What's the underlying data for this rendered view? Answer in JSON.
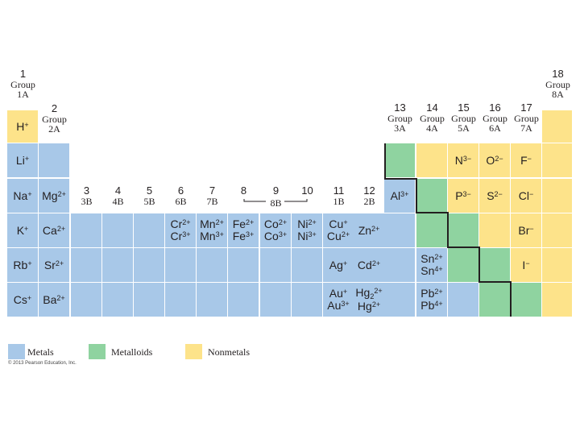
{
  "colors": {
    "metal": "#a8c8e8",
    "metalloid": "#8fd3a0",
    "nonmetal": "#fde38a",
    "border": "#231f20"
  },
  "group_headers": [
    {
      "id": "g1",
      "number": "1",
      "group": "Group",
      "label": "1A"
    },
    {
      "id": "g2",
      "number": "2",
      "group": "Group",
      "label": "2A"
    },
    {
      "id": "g3",
      "number": "3",
      "group": "",
      "label": "3B"
    },
    {
      "id": "g4",
      "number": "4",
      "group": "",
      "label": "4B"
    },
    {
      "id": "g5",
      "number": "5",
      "group": "",
      "label": "5B"
    },
    {
      "id": "g6",
      "number": "6",
      "group": "",
      "label": "6B"
    },
    {
      "id": "g7",
      "number": "7",
      "group": "",
      "label": "7B"
    },
    {
      "id": "g8",
      "number": "8",
      "group": "",
      "label": ""
    },
    {
      "id": "g9",
      "number": "9",
      "group": "",
      "label": "8B"
    },
    {
      "id": "g10",
      "number": "10",
      "group": "",
      "label": ""
    },
    {
      "id": "g11",
      "number": "11",
      "group": "",
      "label": "1B"
    },
    {
      "id": "g12",
      "number": "12",
      "group": "",
      "label": "2B"
    },
    {
      "id": "g13",
      "number": "13",
      "group": "Group",
      "label": "3A"
    },
    {
      "id": "g14",
      "number": "14",
      "group": "Group",
      "label": "4A"
    },
    {
      "id": "g15",
      "number": "15",
      "group": "Group",
      "label": "5A"
    },
    {
      "id": "g16",
      "number": "16",
      "group": "Group",
      "label": "6A"
    },
    {
      "id": "g17",
      "number": "17",
      "group": "Group",
      "label": "7A"
    },
    {
      "id": "g18",
      "number": "18",
      "group": "Group",
      "label": "8A"
    }
  ],
  "cells": [
    {
      "row": 1,
      "col": 1,
      "type": "nonmetal",
      "ions": [
        [
          "H",
          "+"
        ]
      ]
    },
    {
      "row": 1,
      "col": 18,
      "type": "nonmetal",
      "ions": []
    },
    {
      "row": 2,
      "col": 1,
      "type": "metal",
      "ions": [
        [
          "Li",
          "+"
        ]
      ]
    },
    {
      "row": 2,
      "col": 2,
      "type": "metal",
      "ions": []
    },
    {
      "row": 2,
      "col": 13,
      "type": "metalloid",
      "ions": []
    },
    {
      "row": 2,
      "col": 14,
      "type": "nonmetal",
      "ions": []
    },
    {
      "row": 2,
      "col": 15,
      "type": "nonmetal",
      "ions": [
        [
          "N",
          "3−"
        ]
      ]
    },
    {
      "row": 2,
      "col": 16,
      "type": "nonmetal",
      "ions": [
        [
          "O",
          "2−"
        ]
      ]
    },
    {
      "row": 2,
      "col": 17,
      "type": "nonmetal",
      "ions": [
        [
          "F",
          "−"
        ]
      ]
    },
    {
      "row": 2,
      "col": 18,
      "type": "nonmetal",
      "ions": []
    },
    {
      "row": 3,
      "col": 1,
      "type": "metal",
      "ions": [
        [
          "Na",
          "+"
        ]
      ]
    },
    {
      "row": 3,
      "col": 2,
      "type": "metal",
      "ions": [
        [
          "Mg",
          "2+"
        ]
      ]
    },
    {
      "row": 3,
      "col": 13,
      "type": "metal",
      "ions": [
        [
          "Al",
          "3+"
        ]
      ]
    },
    {
      "row": 3,
      "col": 14,
      "type": "metalloid",
      "ions": []
    },
    {
      "row": 3,
      "col": 15,
      "type": "nonmetal",
      "ions": [
        [
          "P",
          "3−"
        ]
      ]
    },
    {
      "row": 3,
      "col": 16,
      "type": "nonmetal",
      "ions": [
        [
          "S",
          "2−"
        ]
      ]
    },
    {
      "row": 3,
      "col": 17,
      "type": "nonmetal",
      "ions": [
        [
          "Cl",
          "−"
        ]
      ]
    },
    {
      "row": 3,
      "col": 18,
      "type": "nonmetal",
      "ions": []
    },
    {
      "row": 4,
      "col": 1,
      "type": "metal",
      "ions": [
        [
          "K",
          "+"
        ]
      ]
    },
    {
      "row": 4,
      "col": 2,
      "type": "metal",
      "ions": [
        [
          "Ca",
          "2+"
        ]
      ]
    },
    {
      "row": 4,
      "col": 3,
      "type": "metal",
      "ions": []
    },
    {
      "row": 4,
      "col": 4,
      "type": "metal",
      "ions": []
    },
    {
      "row": 4,
      "col": 5,
      "type": "metal",
      "ions": []
    },
    {
      "row": 4,
      "col": 6,
      "type": "metal",
      "ions": [
        [
          "Cr",
          "2+"
        ],
        [
          "Cr",
          "3+"
        ]
      ]
    },
    {
      "row": 4,
      "col": 7,
      "type": "metal",
      "ions": [
        [
          "Mn",
          "2+"
        ],
        [
          "Mn",
          "3+"
        ]
      ]
    },
    {
      "row": 4,
      "col": 8,
      "type": "metal",
      "ions": [
        [
          "Fe",
          "2+"
        ],
        [
          "Fe",
          "3+"
        ]
      ]
    },
    {
      "row": 4,
      "col": 9,
      "type": "metal",
      "ions": [
        [
          "Co",
          "2+"
        ],
        [
          "Co",
          "3+"
        ]
      ]
    },
    {
      "row": 4,
      "col": 10,
      "type": "metal",
      "ions": [
        [
          "Ni",
          "2+"
        ],
        [
          "Ni",
          "3+"
        ]
      ]
    },
    {
      "row": 4,
      "col": 11,
      "type": "metal",
      "ions": [
        [
          "Cu",
          "+"
        ],
        [
          "Cu",
          "2+"
        ]
      ]
    },
    {
      "row": 4,
      "col": 12,
      "type": "metal",
      "ions": [
        [
          "Zn",
          "2+"
        ]
      ]
    },
    {
      "row": 4,
      "col": 13,
      "type": "metal",
      "ions": []
    },
    {
      "row": 4,
      "col": 14,
      "type": "metalloid",
      "ions": []
    },
    {
      "row": 4,
      "col": 15,
      "type": "metalloid",
      "ions": []
    },
    {
      "row": 4,
      "col": 16,
      "type": "nonmetal",
      "ions": []
    },
    {
      "row": 4,
      "col": 17,
      "type": "nonmetal",
      "ions": [
        [
          "Br",
          "−"
        ]
      ]
    },
    {
      "row": 4,
      "col": 18,
      "type": "nonmetal",
      "ions": []
    },
    {
      "row": 5,
      "col": 1,
      "type": "metal",
      "ions": [
        [
          "Rb",
          "+"
        ]
      ]
    },
    {
      "row": 5,
      "col": 2,
      "type": "metal",
      "ions": [
        [
          "Sr",
          "2+"
        ]
      ]
    },
    {
      "row": 5,
      "col": 3,
      "type": "metal",
      "ions": []
    },
    {
      "row": 5,
      "col": 4,
      "type": "metal",
      "ions": []
    },
    {
      "row": 5,
      "col": 5,
      "type": "metal",
      "ions": []
    },
    {
      "row": 5,
      "col": 6,
      "type": "metal",
      "ions": []
    },
    {
      "row": 5,
      "col": 7,
      "type": "metal",
      "ions": []
    },
    {
      "row": 5,
      "col": 8,
      "type": "metal",
      "ions": []
    },
    {
      "row": 5,
      "col": 9,
      "type": "metal",
      "ions": []
    },
    {
      "row": 5,
      "col": 10,
      "type": "metal",
      "ions": []
    },
    {
      "row": 5,
      "col": 11,
      "type": "metal",
      "ions": [
        [
          "Ag",
          "+"
        ]
      ]
    },
    {
      "row": 5,
      "col": 12,
      "type": "metal",
      "ions": [
        [
          "Cd",
          "2+"
        ]
      ]
    },
    {
      "row": 5,
      "col": 13,
      "type": "metal",
      "ions": []
    },
    {
      "row": 5,
      "col": 14,
      "type": "metal",
      "ions": [
        [
          "Sn",
          "2+"
        ],
        [
          "Sn",
          "4+"
        ]
      ]
    },
    {
      "row": 5,
      "col": 15,
      "type": "metalloid",
      "ions": []
    },
    {
      "row": 5,
      "col": 16,
      "type": "metalloid",
      "ions": []
    },
    {
      "row": 5,
      "col": 17,
      "type": "nonmetal",
      "ions": [
        [
          "I",
          "−"
        ]
      ]
    },
    {
      "row": 5,
      "col": 18,
      "type": "nonmetal",
      "ions": []
    },
    {
      "row": 6,
      "col": 1,
      "type": "metal",
      "ions": [
        [
          "Cs",
          "+"
        ]
      ]
    },
    {
      "row": 6,
      "col": 2,
      "type": "metal",
      "ions": [
        [
          "Ba",
          "2+"
        ]
      ]
    },
    {
      "row": 6,
      "col": 3,
      "type": "metal",
      "ions": []
    },
    {
      "row": 6,
      "col": 4,
      "type": "metal",
      "ions": []
    },
    {
      "row": 6,
      "col": 5,
      "type": "metal",
      "ions": []
    },
    {
      "row": 6,
      "col": 6,
      "type": "metal",
      "ions": []
    },
    {
      "row": 6,
      "col": 7,
      "type": "metal",
      "ions": []
    },
    {
      "row": 6,
      "col": 8,
      "type": "metal",
      "ions": []
    },
    {
      "row": 6,
      "col": 9,
      "type": "metal",
      "ions": []
    },
    {
      "row": 6,
      "col": 10,
      "type": "metal",
      "ions": []
    },
    {
      "row": 6,
      "col": 11,
      "type": "metal",
      "ions": [
        [
          "Au",
          "+"
        ],
        [
          "Au",
          "3+"
        ]
      ]
    },
    {
      "row": 6,
      "col": 12,
      "type": "metal",
      "ions": [
        [
          "Hg",
          "2+",
          "2"
        ],
        [
          "Hg",
          "2+"
        ]
      ]
    },
    {
      "row": 6,
      "col": 13,
      "type": "metal",
      "ions": []
    },
    {
      "row": 6,
      "col": 14,
      "type": "metal",
      "ions": [
        [
          "Pb",
          "2+"
        ],
        [
          "Pb",
          "4+"
        ]
      ]
    },
    {
      "row": 6,
      "col": 15,
      "type": "metal",
      "ions": []
    },
    {
      "row": 6,
      "col": 16,
      "type": "metalloid",
      "ions": []
    },
    {
      "row": 6,
      "col": 17,
      "type": "metalloid",
      "ions": []
    },
    {
      "row": 6,
      "col": 18,
      "type": "nonmetal",
      "ions": []
    }
  ],
  "legend": [
    {
      "type": "metal",
      "label": "Metals"
    },
    {
      "type": "metalloid",
      "label": "Metalloids"
    },
    {
      "type": "nonmetal",
      "label": "Nonmetals"
    }
  ],
  "copyright": "© 2013 Pearson Education, Inc."
}
